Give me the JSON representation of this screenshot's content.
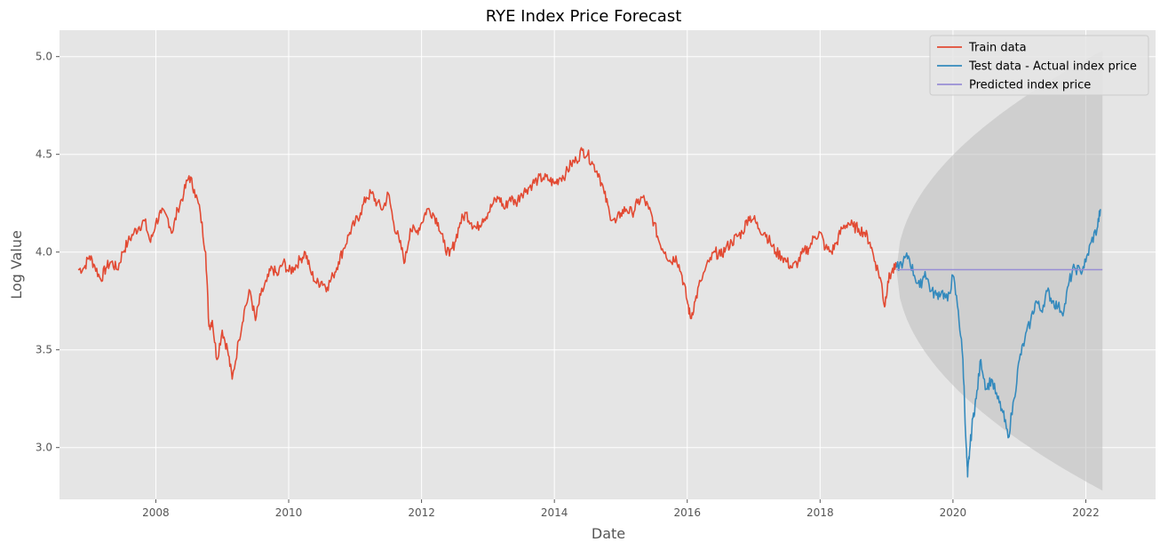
{
  "chart_data": {
    "type": "line",
    "title": "RYE Index Price Forecast",
    "xlabel": "Date",
    "ylabel": "Log Value",
    "xlim": [
      2006.55,
      2023.05
    ],
    "ylim": [
      2.735,
      5.135
    ],
    "x_ticks": [
      2008,
      2010,
      2012,
      2014,
      2016,
      2018,
      2020,
      2022
    ],
    "x_tick_labels": [
      "2008",
      "2010",
      "2012",
      "2014",
      "2016",
      "2018",
      "2020",
      "2022"
    ],
    "y_ticks": [
      3.0,
      3.5,
      4.0,
      4.5,
      5.0
    ],
    "y_tick_labels": [
      "3.0",
      "3.5",
      "4.0",
      "4.5",
      "5.0"
    ],
    "grid": true,
    "legend_position": "top-right",
    "series": [
      {
        "name": "Train data",
        "color": "#e24a33",
        "points": [
          [
            2006.83,
            3.91
          ],
          [
            2006.92,
            3.92
          ],
          [
            2007.0,
            3.98
          ],
          [
            2007.08,
            3.93
          ],
          [
            2007.17,
            3.86
          ],
          [
            2007.25,
            3.92
          ],
          [
            2007.33,
            3.95
          ],
          [
            2007.42,
            3.91
          ],
          [
            2007.5,
            4.0
          ],
          [
            2007.58,
            4.05
          ],
          [
            2007.67,
            4.1
          ],
          [
            2007.75,
            4.13
          ],
          [
            2007.83,
            4.16
          ],
          [
            2007.92,
            4.05
          ],
          [
            2008.0,
            4.15
          ],
          [
            2008.08,
            4.2
          ],
          [
            2008.17,
            4.18
          ],
          [
            2008.25,
            4.1
          ],
          [
            2008.33,
            4.22
          ],
          [
            2008.42,
            4.3
          ],
          [
            2008.5,
            4.39
          ],
          [
            2008.58,
            4.32
          ],
          [
            2008.67,
            4.2
          ],
          [
            2008.75,
            4.0
          ],
          [
            2008.8,
            3.62
          ],
          [
            2008.85,
            3.65
          ],
          [
            2008.92,
            3.45
          ],
          [
            2009.0,
            3.6
          ],
          [
            2009.08,
            3.5
          ],
          [
            2009.15,
            3.35
          ],
          [
            2009.25,
            3.55
          ],
          [
            2009.33,
            3.7
          ],
          [
            2009.42,
            3.8
          ],
          [
            2009.5,
            3.65
          ],
          [
            2009.58,
            3.78
          ],
          [
            2009.67,
            3.85
          ],
          [
            2009.75,
            3.92
          ],
          [
            2009.83,
            3.88
          ],
          [
            2009.92,
            3.95
          ],
          [
            2010.0,
            3.9
          ],
          [
            2010.08,
            3.92
          ],
          [
            2010.17,
            3.96
          ],
          [
            2010.25,
            4.0
          ],
          [
            2010.33,
            3.9
          ],
          [
            2010.42,
            3.84
          ],
          [
            2010.5,
            3.85
          ],
          [
            2010.58,
            3.82
          ],
          [
            2010.67,
            3.88
          ],
          [
            2010.75,
            3.95
          ],
          [
            2010.83,
            4.02
          ],
          [
            2010.92,
            4.1
          ],
          [
            2011.0,
            4.15
          ],
          [
            2011.08,
            4.2
          ],
          [
            2011.17,
            4.28
          ],
          [
            2011.25,
            4.3
          ],
          [
            2011.33,
            4.25
          ],
          [
            2011.42,
            4.22
          ],
          [
            2011.5,
            4.3
          ],
          [
            2011.58,
            4.15
          ],
          [
            2011.67,
            4.05
          ],
          [
            2011.75,
            3.95
          ],
          [
            2011.83,
            4.12
          ],
          [
            2011.92,
            4.1
          ],
          [
            2012.0,
            4.15
          ],
          [
            2012.08,
            4.22
          ],
          [
            2012.17,
            4.2
          ],
          [
            2012.25,
            4.15
          ],
          [
            2012.33,
            4.05
          ],
          [
            2012.42,
            3.98
          ],
          [
            2012.5,
            4.05
          ],
          [
            2012.58,
            4.15
          ],
          [
            2012.67,
            4.2
          ],
          [
            2012.75,
            4.15
          ],
          [
            2012.83,
            4.12
          ],
          [
            2012.92,
            4.17
          ],
          [
            2013.0,
            4.2
          ],
          [
            2013.08,
            4.25
          ],
          [
            2013.17,
            4.28
          ],
          [
            2013.25,
            4.22
          ],
          [
            2013.33,
            4.28
          ],
          [
            2013.42,
            4.25
          ],
          [
            2013.5,
            4.3
          ],
          [
            2013.58,
            4.32
          ],
          [
            2013.67,
            4.35
          ],
          [
            2013.75,
            4.37
          ],
          [
            2013.83,
            4.38
          ],
          [
            2013.92,
            4.37
          ],
          [
            2014.0,
            4.35
          ],
          [
            2014.08,
            4.38
          ],
          [
            2014.17,
            4.4
          ],
          [
            2014.25,
            4.45
          ],
          [
            2014.33,
            4.47
          ],
          [
            2014.42,
            4.52
          ],
          [
            2014.5,
            4.5
          ],
          [
            2014.58,
            4.45
          ],
          [
            2014.67,
            4.4
          ],
          [
            2014.75,
            4.3
          ],
          [
            2014.83,
            4.2
          ],
          [
            2014.92,
            4.15
          ],
          [
            2015.0,
            4.2
          ],
          [
            2015.08,
            4.22
          ],
          [
            2015.17,
            4.2
          ],
          [
            2015.25,
            4.25
          ],
          [
            2015.33,
            4.28
          ],
          [
            2015.42,
            4.22
          ],
          [
            2015.5,
            4.15
          ],
          [
            2015.58,
            4.05
          ],
          [
            2015.67,
            4.0
          ],
          [
            2015.75,
            3.95
          ],
          [
            2015.83,
            3.98
          ],
          [
            2015.92,
            3.88
          ],
          [
            2016.0,
            3.75
          ],
          [
            2016.05,
            3.66
          ],
          [
            2016.12,
            3.75
          ],
          [
            2016.2,
            3.85
          ],
          [
            2016.33,
            3.95
          ],
          [
            2016.42,
            4.0
          ],
          [
            2016.5,
            3.98
          ],
          [
            2016.58,
            4.02
          ],
          [
            2016.67,
            4.05
          ],
          [
            2016.75,
            4.08
          ],
          [
            2016.83,
            4.1
          ],
          [
            2016.92,
            4.18
          ],
          [
            2017.0,
            4.17
          ],
          [
            2017.08,
            4.12
          ],
          [
            2017.17,
            4.1
          ],
          [
            2017.25,
            4.05
          ],
          [
            2017.33,
            4.0
          ],
          [
            2017.42,
            3.98
          ],
          [
            2017.5,
            3.95
          ],
          [
            2017.58,
            3.92
          ],
          [
            2017.67,
            3.95
          ],
          [
            2017.75,
            4.0
          ],
          [
            2017.83,
            4.02
          ],
          [
            2017.92,
            4.08
          ],
          [
            2018.0,
            4.1
          ],
          [
            2018.08,
            4.02
          ],
          [
            2018.17,
            4.0
          ],
          [
            2018.25,
            4.05
          ],
          [
            2018.33,
            4.12
          ],
          [
            2018.42,
            4.15
          ],
          [
            2018.5,
            4.13
          ],
          [
            2018.58,
            4.12
          ],
          [
            2018.67,
            4.1
          ],
          [
            2018.75,
            4.05
          ],
          [
            2018.83,
            3.95
          ],
          [
            2018.92,
            3.85
          ],
          [
            2018.97,
            3.72
          ],
          [
            2019.02,
            3.85
          ],
          [
            2019.08,
            3.9
          ],
          [
            2019.15,
            3.92
          ]
        ]
      },
      {
        "name": "Test data - Actual index price",
        "color": "#348abd",
        "points": [
          [
            2019.15,
            3.92
          ],
          [
            2019.25,
            3.95
          ],
          [
            2019.33,
            3.98
          ],
          [
            2019.42,
            3.88
          ],
          [
            2019.5,
            3.82
          ],
          [
            2019.58,
            3.9
          ],
          [
            2019.67,
            3.8
          ],
          [
            2019.75,
            3.78
          ],
          [
            2019.83,
            3.8
          ],
          [
            2019.92,
            3.75
          ],
          [
            2020.0,
            3.88
          ],
          [
            2020.08,
            3.7
          ],
          [
            2020.15,
            3.45
          ],
          [
            2020.2,
            3.0
          ],
          [
            2020.22,
            2.85
          ],
          [
            2020.25,
            2.98
          ],
          [
            2020.3,
            3.15
          ],
          [
            2020.35,
            3.25
          ],
          [
            2020.42,
            3.45
          ],
          [
            2020.5,
            3.3
          ],
          [
            2020.58,
            3.35
          ],
          [
            2020.67,
            3.25
          ],
          [
            2020.75,
            3.18
          ],
          [
            2020.83,
            3.05
          ],
          [
            2020.92,
            3.25
          ],
          [
            2021.0,
            3.45
          ],
          [
            2021.08,
            3.55
          ],
          [
            2021.17,
            3.65
          ],
          [
            2021.25,
            3.75
          ],
          [
            2021.33,
            3.7
          ],
          [
            2021.42,
            3.8
          ],
          [
            2021.5,
            3.75
          ],
          [
            2021.58,
            3.72
          ],
          [
            2021.67,
            3.7
          ],
          [
            2021.75,
            3.85
          ],
          [
            2021.83,
            3.92
          ],
          [
            2021.92,
            3.9
          ],
          [
            2022.0,
            3.95
          ],
          [
            2022.08,
            4.05
          ],
          [
            2022.17,
            4.12
          ],
          [
            2022.22,
            4.22
          ]
        ]
      },
      {
        "name": "Predicted index price",
        "color": "#988ed5",
        "points": [
          [
            2019.15,
            3.91
          ],
          [
            2022.25,
            3.91
          ]
        ]
      }
    ],
    "confidence_band": {
      "color": "#bdbdbd",
      "x_start": 2019.15,
      "x_end": 2022.25,
      "center": 3.91,
      "upper_end": 5.03,
      "lower_end": 2.78
    }
  }
}
